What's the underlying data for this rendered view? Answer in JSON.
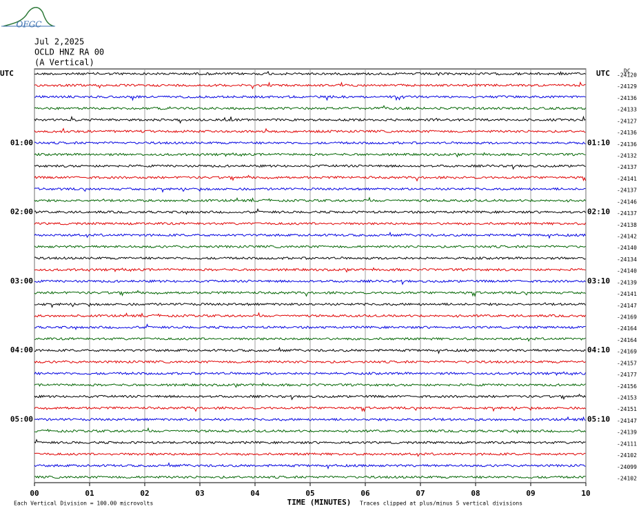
{
  "logo": "OFGC",
  "chart_data": {
    "type": "helicorder",
    "title_lines": [
      "Jul 2,2025",
      "OCLD HNZ RA 00",
      "(A Vertical)"
    ],
    "left_timezone": "UTC",
    "right_timezone": "UTC",
    "offset_header": "DC",
    "hour_labels": [
      "01:00",
      "02:00",
      "03:00",
      "04:00",
      "05:00"
    ],
    "right_hour_labels": [
      "01:10",
      "02:10",
      "03:10",
      "04:10",
      "05:10"
    ],
    "rows_per_hour": 6,
    "trace_colors": [
      "#000000",
      "#e00000",
      "#0000e0",
      "#006400"
    ],
    "dc_offsets": [
      -24120,
      -24129,
      -24136,
      -24133,
      -24127,
      -24136,
      -24136,
      -24132,
      -24137,
      -24141,
      -24137,
      -24146,
      -24137,
      -24138,
      -24142,
      -24140,
      -24134,
      -24140,
      -24139,
      -24141,
      -24147,
      -24169,
      -24164,
      -24164,
      -24169,
      -24157,
      -24177,
      -24156,
      -24153,
      -24151,
      -24147,
      -24139,
      -24111,
      -24102,
      -24099,
      -24102
    ],
    "xlim": [
      0,
      10
    ],
    "xticks": [
      {
        "value": 0,
        "label": "00"
      },
      {
        "value": 1,
        "label": "01"
      },
      {
        "value": 2,
        "label": "02"
      },
      {
        "value": 3,
        "label": "03"
      },
      {
        "value": 4,
        "label": "04"
      },
      {
        "value": 5,
        "label": "05"
      },
      {
        "value": 6,
        "label": "06"
      },
      {
        "value": 7,
        "label": "07"
      },
      {
        "value": 8,
        "label": "08"
      },
      {
        "value": 9,
        "label": "09"
      },
      {
        "value": 10,
        "label": "10"
      }
    ],
    "xlabel": "TIME (MINUTES)",
    "scale_note": "Each Vertical Division =  100.00 microvolts",
    "clip_note": "Traces clipped at plus/minus 5 vertical divisions",
    "grid": true
  }
}
